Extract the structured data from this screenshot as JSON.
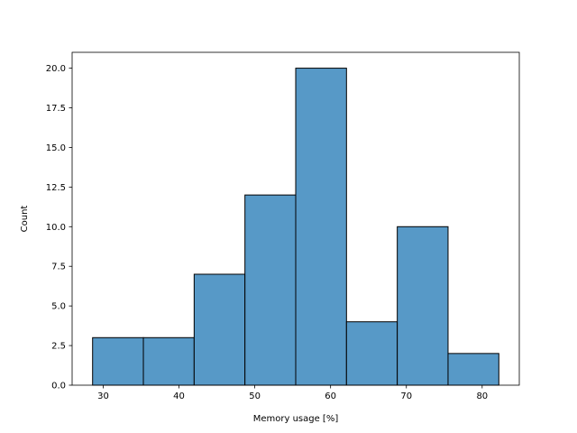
{
  "chart_data": {
    "type": "bar",
    "subtype": "histogram",
    "title": "",
    "xlabel": "Memory usage [%]",
    "ylabel": "Count",
    "bins": [
      {
        "start": 28.6,
        "end": 35.3,
        "count": 3
      },
      {
        "start": 35.3,
        "end": 42.0,
        "count": 3
      },
      {
        "start": 42.0,
        "end": 48.7,
        "count": 7
      },
      {
        "start": 48.7,
        "end": 55.4,
        "count": 12
      },
      {
        "start": 55.4,
        "end": 62.1,
        "count": 20
      },
      {
        "start": 62.1,
        "end": 68.8,
        "count": 4
      },
      {
        "start": 68.8,
        "end": 75.5,
        "count": 10
      },
      {
        "start": 75.5,
        "end": 82.2,
        "count": 2
      }
    ],
    "xlim": [
      25.9,
      84.9
    ],
    "ylim": [
      0,
      21
    ],
    "xticks": [
      30,
      40,
      50,
      60,
      70,
      80
    ],
    "yticks": [
      0.0,
      2.5,
      5.0,
      7.5,
      10.0,
      12.5,
      15.0,
      17.5,
      20.0
    ],
    "xtick_labels": [
      "30",
      "40",
      "50",
      "60",
      "70",
      "80"
    ],
    "ytick_labels": [
      "0.0",
      "2.5",
      "5.0",
      "7.5",
      "10.0",
      "12.5",
      "15.0",
      "17.5",
      "20.0"
    ],
    "bar_color": "#5799c7",
    "edge_color": "#000000",
    "grid": false,
    "legend": "none"
  }
}
